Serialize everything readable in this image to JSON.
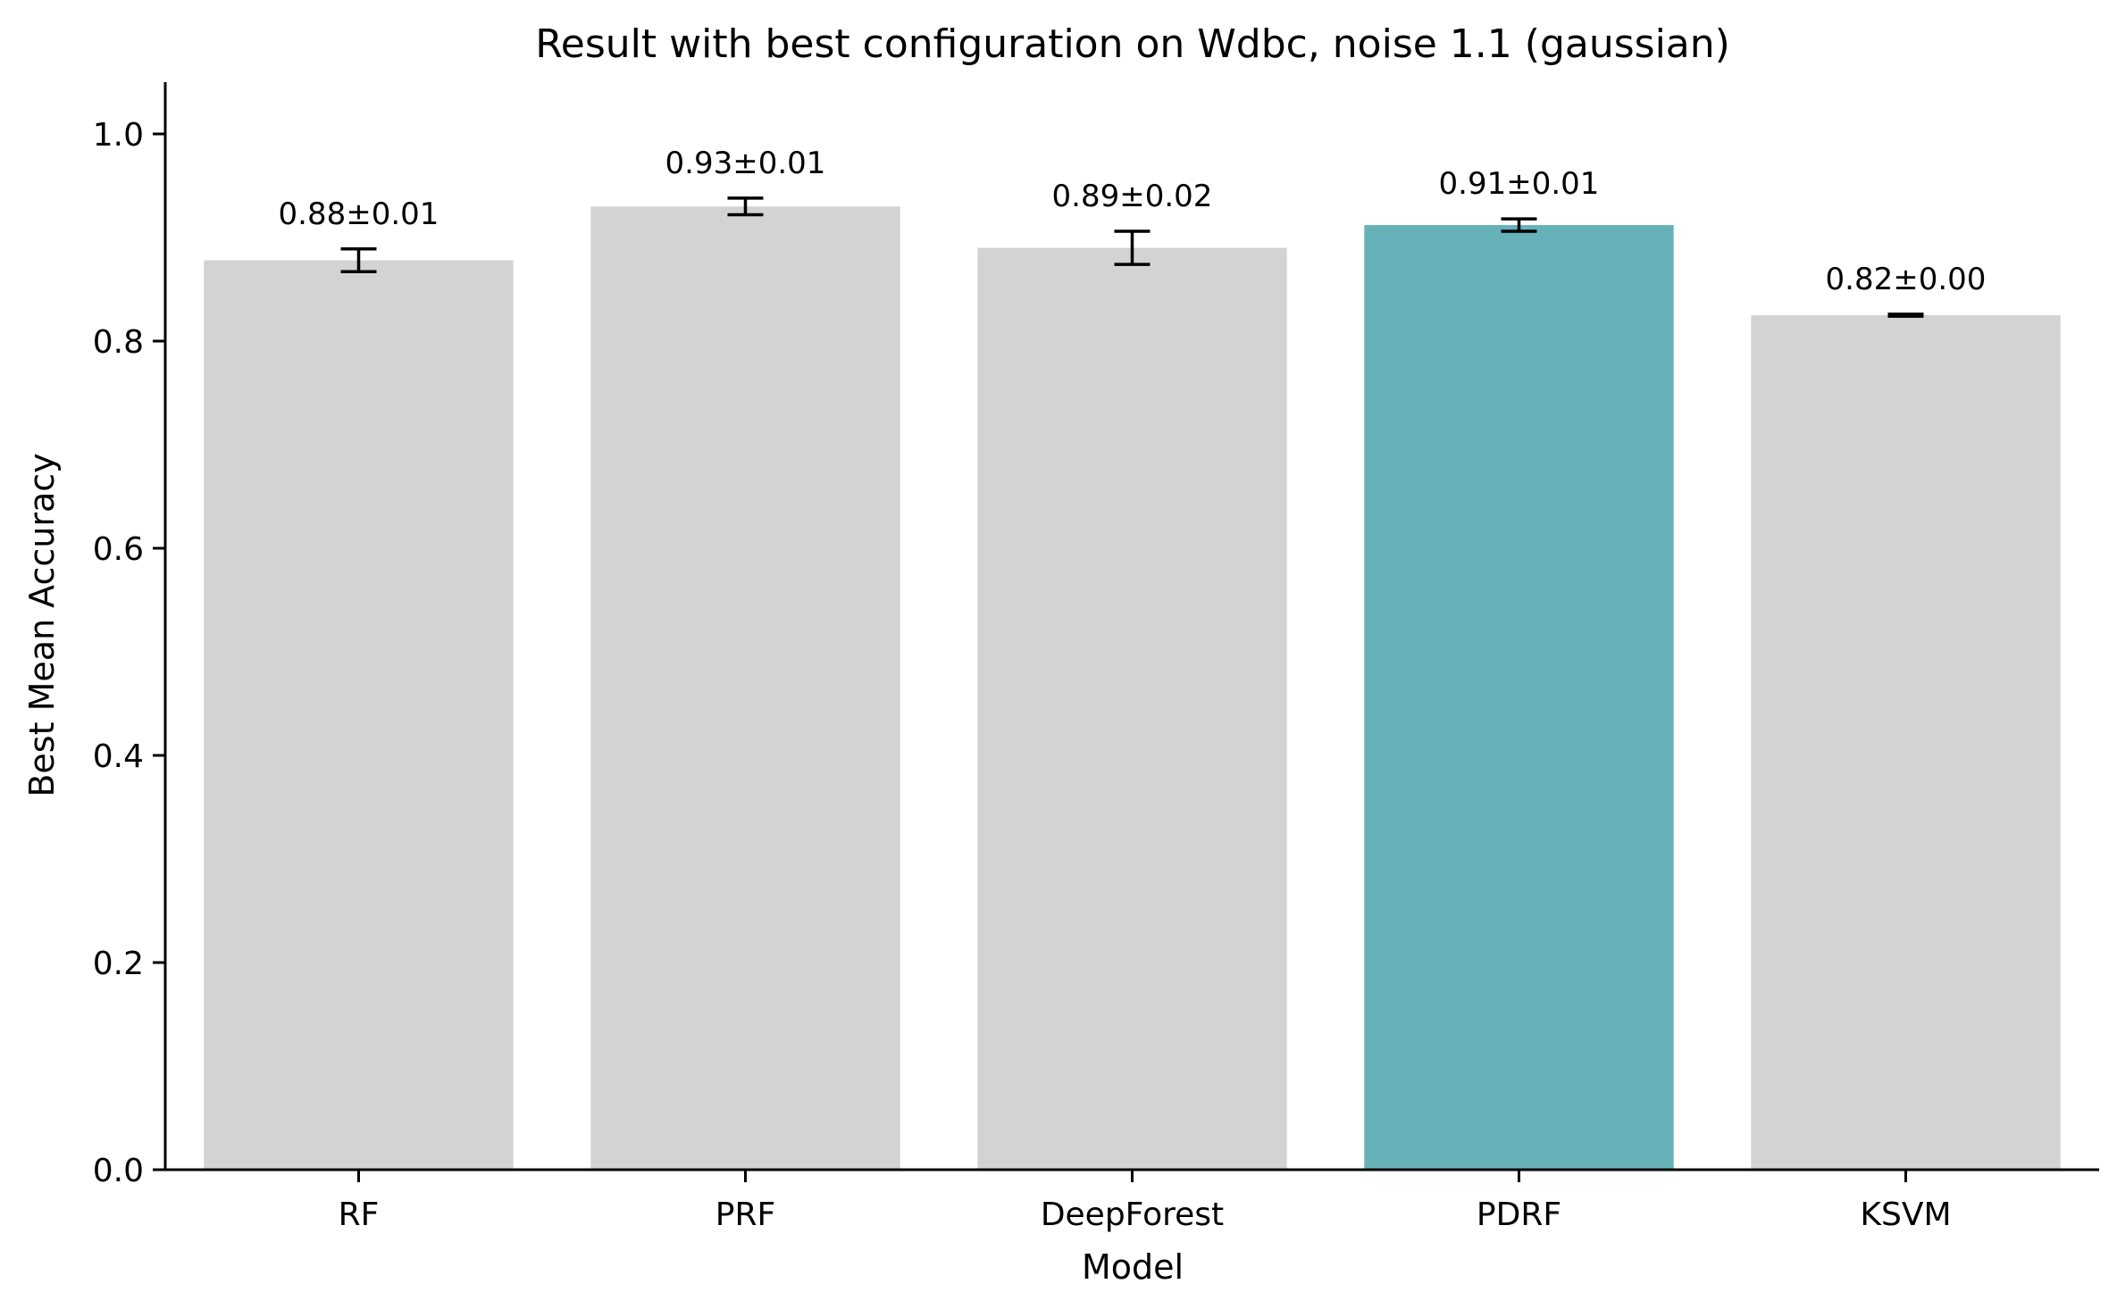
{
  "chart_data": {
    "type": "bar",
    "title": "Result with best configuration on Wdbc, noise 1.1 (gaussian)",
    "xlabel": "Model",
    "ylabel": "Best Mean Accuracy",
    "categories": [
      "RF",
      "PRF",
      "DeepForest",
      "PDRF",
      "KSVM"
    ],
    "values": [
      0.878,
      0.93,
      0.89,
      0.912,
      0.825
    ],
    "errors": [
      0.011,
      0.008,
      0.016,
      0.006,
      0.001
    ],
    "data_labels": [
      "0.88±0.01",
      "0.93±0.01",
      "0.89±0.02",
      "0.91±0.01",
      "0.82±0.00"
    ],
    "ylim": [
      0,
      1.05
    ],
    "yticks": [
      0.0,
      0.2,
      0.4,
      0.6,
      0.8,
      1.0
    ],
    "ytick_labels": [
      "0.0",
      "0.2",
      "0.4",
      "0.6",
      "0.8",
      "1.0"
    ],
    "grid": false,
    "colors": {
      "default_bar": "#d3d3d3",
      "highlight_bar": "#66b2b8",
      "highlight_category": "PDRF"
    }
  }
}
